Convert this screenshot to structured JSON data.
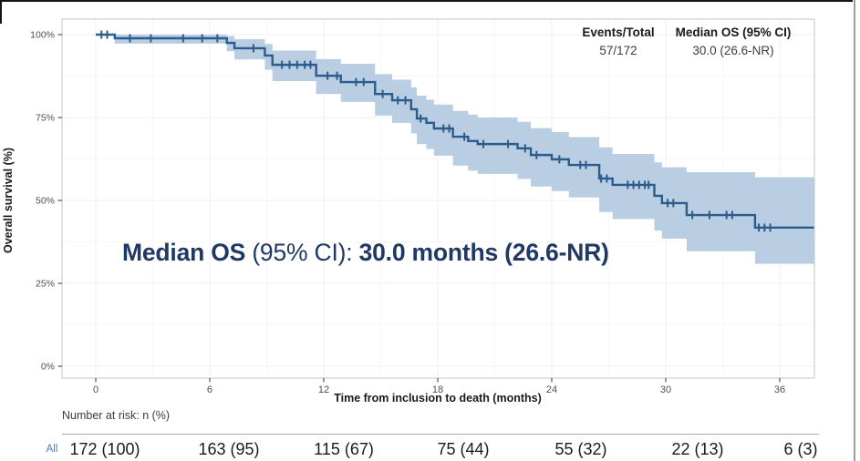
{
  "colors": {
    "curve": "#2b5c8c",
    "ci_band": "#b9cde3",
    "annotation_text": "#1f3864",
    "risk_row_label": "#4a7dbb",
    "frame_top": "#161616",
    "frame_right": "#9e9e9e"
  },
  "stats": {
    "col1": {
      "header": "Events/Total",
      "value": "57/172"
    },
    "col2": {
      "header": "Median OS (95% CI)",
      "value": "30.0 (26.6-NR)"
    }
  },
  "annotation": {
    "part1": "Median OS ",
    "part2": "(95% CI): ",
    "part3": "30.0 months (26.6-NR)"
  },
  "risk_table": {
    "caption": "Number at risk: n (%)",
    "row_label": "All",
    "values": [
      "172 (100)",
      "163 (95)",
      "115 (67)",
      "75 (44)",
      "55 (32)",
      "22 (13)",
      "6 (3)"
    ]
  },
  "chart_data": {
    "type": "line",
    "subtype": "kaplan-meier",
    "title": "",
    "xlabel": "Time from inclusion to death (months)",
    "ylabel": "Overall survival (%)",
    "xlim": [
      -1.8,
      37.8
    ],
    "ylim": [
      0,
      104
    ],
    "grid": true,
    "legend_position": "none",
    "xticks": [
      0,
      6,
      12,
      18,
      24,
      30,
      36
    ],
    "xtick_labels": [
      "0",
      "6",
      "12",
      "18",
      "24",
      "30",
      "36"
    ],
    "x_minor": [
      3,
      9,
      15,
      21,
      27,
      33
    ],
    "yticks": [
      0,
      25,
      50,
      75,
      100
    ],
    "ytick_labels": [
      "0%",
      "25%",
      "50%",
      "75%",
      "100%"
    ],
    "y_minor": [
      12.5,
      37.5,
      62.5,
      87.5
    ],
    "series": [
      {
        "name": "All",
        "events_total": "57/172",
        "median_os": "30.0 (26.6-NR)",
        "color": "#2b5c8c",
        "ci_color": "#b9cde3",
        "t": [
          0,
          1.0,
          6.9,
          7.3,
          8.9,
          9.3,
          11.6,
          12.9,
          14.7,
          15.6,
          16.6,
          16.9,
          17.4,
          17.8,
          18.8,
          19.6,
          20.1,
          22.2,
          22.9,
          24.0,
          24.9,
          26.5,
          27.2,
          29.4,
          29.8,
          31.1,
          34.7
        ],
        "survival": [
          100,
          98.9,
          97.5,
          95.9,
          93.7,
          90.9,
          87.6,
          85.7,
          82.1,
          80.2,
          77.5,
          74.7,
          73.4,
          71.7,
          69.2,
          67.9,
          67.0,
          65.7,
          63.7,
          62.4,
          60.7,
          56.6,
          54.7,
          51.4,
          49.2,
          45.6,
          41.8
        ],
        "ci_upper": [
          100,
          100,
          99.6,
          98.6,
          97.2,
          95.2,
          92.6,
          91.2,
          88.1,
          86.4,
          84.1,
          81.6,
          80.4,
          78.9,
          77.0,
          75.9,
          75.0,
          73.7,
          71.8,
          70.6,
          69.1,
          66.0,
          64.0,
          61.5,
          60.0,
          58.5,
          57.0
        ],
        "ci_lower": [
          100,
          97.3,
          95.0,
          92.5,
          89.4,
          86.0,
          82.1,
          79.7,
          75.6,
          73.4,
          70.2,
          67.0,
          65.5,
          63.5,
          60.5,
          59.0,
          58.0,
          56.5,
          54.2,
          52.8,
          50.9,
          46.5,
          44.4,
          40.9,
          38.5,
          34.7,
          30.9
        ],
        "censor_times": [
          0.3,
          0.6,
          1.8,
          2.9,
          4.6,
          5.6,
          6.4,
          8.3,
          9.8,
          10.2,
          10.6,
          11.0,
          11.3,
          12.2,
          12.7,
          13.7,
          14.1,
          15.1,
          15.9,
          16.3,
          17.1,
          18.3,
          18.6,
          19.4,
          20.4,
          21.7,
          22.6,
          23.2,
          24.4,
          25.5,
          25.8,
          26.6,
          26.9,
          28.0,
          28.3,
          28.6,
          28.9,
          29.1,
          30.1,
          30.4,
          31.4,
          32.3,
          33.2,
          33.5,
          34.9,
          35.2,
          35.5
        ]
      }
    ],
    "number_at_risk": {
      "row": "All",
      "times": [
        0,
        6,
        12,
        18,
        24,
        30,
        36
      ],
      "n_pct": [
        "172 (100)",
        "163 (95)",
        "115 (67)",
        "75 (44)",
        "55 (32)",
        "22 (13)",
        "6 (3)"
      ]
    }
  }
}
